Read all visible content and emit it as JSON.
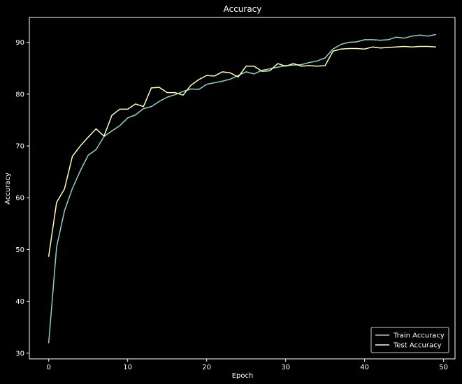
{
  "chart_data": {
    "type": "line",
    "title": "Accuracy",
    "xlabel": "Epoch",
    "ylabel": "Accuracy",
    "xlim": [
      -2.45,
      51.45
    ],
    "ylim": [
      28.9,
      94.8
    ],
    "x_ticks": [
      0,
      10,
      20,
      30,
      40,
      50
    ],
    "y_ticks": [
      30,
      40,
      50,
      60,
      70,
      80,
      90
    ],
    "grid": false,
    "legend_position": "bottom-right",
    "background_color": "#000000",
    "x": [
      0,
      1,
      2,
      3,
      4,
      5,
      6,
      7,
      8,
      9,
      10,
      11,
      12,
      13,
      14,
      15,
      16,
      17,
      18,
      19,
      20,
      21,
      22,
      23,
      24,
      25,
      26,
      27,
      28,
      29,
      30,
      31,
      32,
      33,
      34,
      35,
      36,
      37,
      38,
      39,
      40,
      41,
      42,
      43,
      44,
      45,
      46,
      47,
      48,
      49
    ],
    "series": [
      {
        "name": "Train Accuracy",
        "color": "#8dd3c7",
        "values": [
          32.0,
          50.5,
          57.5,
          61.8,
          65.2,
          68.2,
          69.3,
          71.8,
          72.9,
          73.9,
          75.4,
          76.0,
          77.2,
          77.6,
          78.6,
          79.4,
          79.9,
          80.5,
          81.0,
          80.9,
          81.9,
          82.2,
          82.5,
          82.9,
          83.6,
          84.3,
          83.9,
          84.6,
          84.9,
          85.2,
          85.5,
          85.6,
          85.7,
          86.1,
          86.4,
          87.0,
          88.7,
          89.6,
          90.0,
          90.1,
          90.5,
          90.5,
          90.4,
          90.5,
          91.0,
          90.8,
          91.2,
          91.4,
          91.2,
          91.5
        ]
      },
      {
        "name": "Test Accuracy",
        "color": "#ffffb3",
        "values": [
          48.7,
          59.1,
          61.7,
          68.0,
          70.0,
          71.7,
          73.3,
          71.9,
          75.9,
          77.1,
          77.1,
          78.1,
          77.6,
          81.2,
          81.3,
          80.3,
          80.3,
          79.8,
          81.7,
          82.8,
          83.6,
          83.5,
          84.3,
          84.1,
          83.3,
          85.4,
          85.4,
          84.4,
          84.5,
          85.9,
          85.4,
          85.9,
          85.4,
          85.5,
          85.4,
          85.5,
          88.3,
          88.7,
          88.8,
          88.8,
          88.7,
          89.1,
          88.9,
          89.0,
          89.1,
          89.2,
          89.1,
          89.2,
          89.2,
          89.1
        ]
      }
    ]
  }
}
